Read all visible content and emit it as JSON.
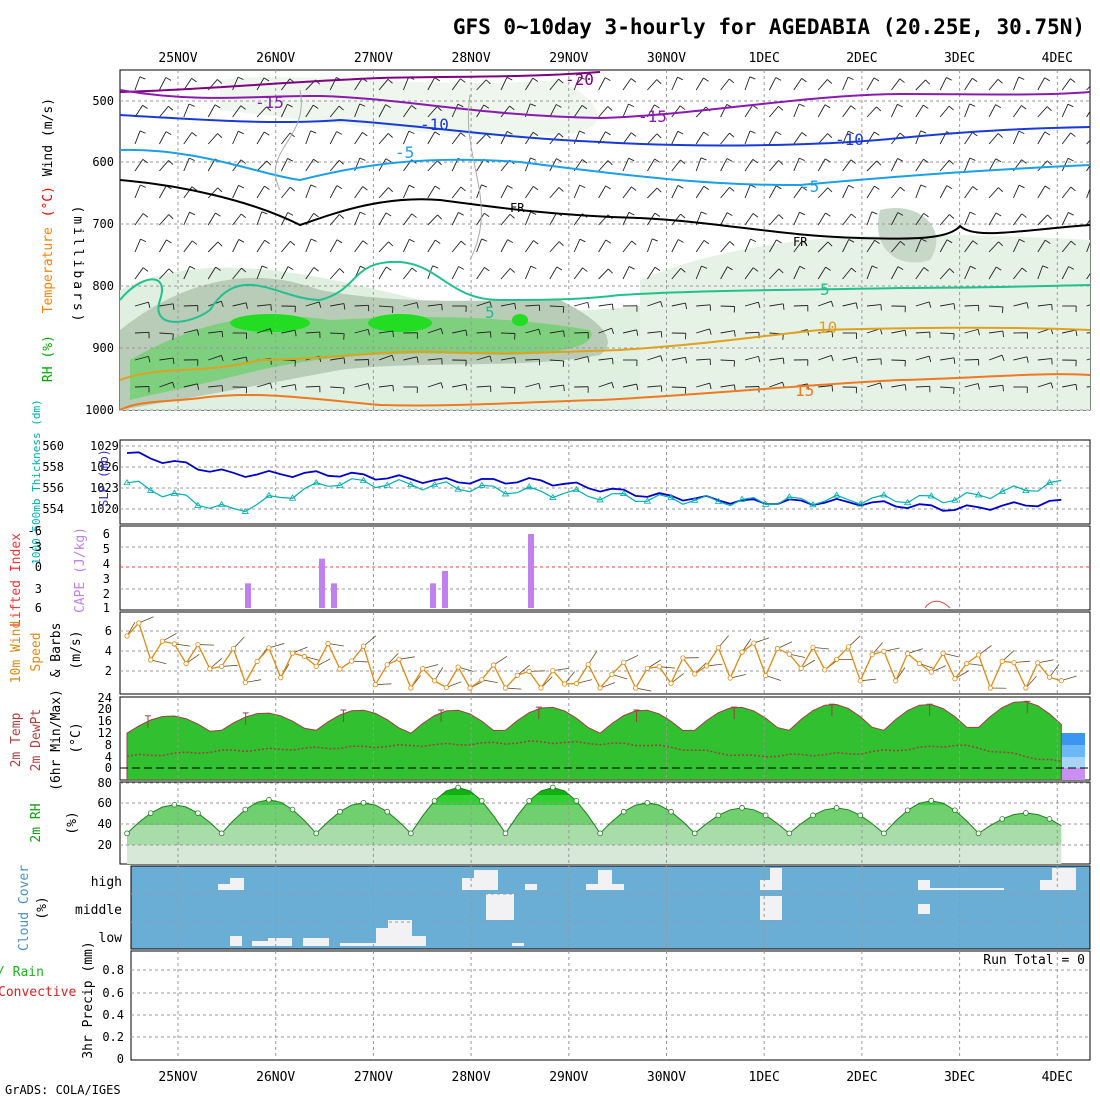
{
  "header": {
    "title": "GFS 0~10day 3-hourly for AGEDABIA (20.25E, 30.75N)",
    "footer": "GrADS: COLA/IGES"
  },
  "x_axis": {
    "day_labels": [
      "25NOV",
      "26NOV",
      "27NOV",
      "28NOV",
      "29NOV",
      "30NOV",
      "1DEC",
      "2DEC",
      "3DEC",
      "4DEC"
    ]
  },
  "panels": {
    "upper_air": {
      "ylabel_parts": [
        {
          "text": "RH (%)",
          "color": "#00aa00"
        },
        {
          "text": "Temperature",
          "color": "#ff8000"
        },
        {
          "text": "(°C)",
          "color": "#ff0000"
        },
        {
          "text": "Wind (m/s)",
          "color": "#000000"
        }
      ],
      "units_label": "(millibars)",
      "y_ticks": [
        "500",
        "600",
        "700",
        "800",
        "900",
        "1000"
      ],
      "contour_labels": [
        "-20",
        "-15",
        "-15",
        "-10",
        "-10",
        "-5",
        "-5",
        "FR",
        "FR",
        "5",
        "5",
        "10",
        "15"
      ]
    },
    "slp": {
      "ylabel_left": "1000-500mb Thickness (dm)",
      "ylabel_right": "SLP (mb)",
      "left_ticks": [
        "560",
        "558",
        "556",
        "554"
      ],
      "right_ticks": [
        "1029",
        "1026",
        "1023",
        "1020"
      ]
    },
    "cape": {
      "ylabel_a": "Lifted Index",
      "ylabel_b": "CAPE (J/kg)",
      "left_ticks": [
        "-6",
        "-3",
        "0",
        "3",
        "6"
      ],
      "right_ticks": [
        "6",
        "5",
        "4",
        "3",
        "2",
        "1"
      ]
    },
    "wind10m": {
      "ylabel_a": "10m Wind",
      "ylabel_b": "Speed",
      "ylabel_c": "& Barbs",
      "ylabel_d": "(m/s)",
      "y_ticks": [
        "6",
        "4",
        "2"
      ]
    },
    "temp2m": {
      "ylabel_a": "2m Temp",
      "ylabel_b": "2m DewPt",
      "ylabel_c": "(6hr Min/Max)",
      "ylabel_d": "(°C)",
      "y_ticks": [
        "24",
        "20",
        "16",
        "12",
        "8",
        "4",
        "0"
      ]
    },
    "rh2m": {
      "ylabel_a": "2m RH",
      "ylabel_b": "(%)",
      "y_ticks": [
        "80",
        "60",
        "40",
        "20"
      ]
    },
    "cloud": {
      "ylabel_a": "Cloud Cover",
      "ylabel_b": "(%)",
      "levels": [
        "high",
        "middle",
        "low"
      ]
    },
    "precip": {
      "ylabel_a": "Total / Rain",
      "ylabel_b": "Convective",
      "ylabel_c": "3hr Precip (mm)",
      "y_ticks": [
        "0.8",
        "0.6",
        "0.4",
        "0.2",
        "0"
      ],
      "run_total": "Run Total = 0"
    }
  },
  "colors": {
    "rh_green": "#00cc00",
    "temp_line": "#ff8c00",
    "slp_line": "#0000cc",
    "thickness_line": "#00b0b0",
    "cape_bar": "#c080f0",
    "cloud_bg": "#6aaed6",
    "grid": "#aaaaaa"
  },
  "chart_data": [
    {
      "type": "heatmap",
      "title": "GFS 0~10day 3-hourly for AGEDABIA (20.25E, 30.75N)",
      "ylabel": "millibars",
      "ylim": [
        1000,
        460
      ],
      "isotherms_C": [
        -20,
        -15,
        -10,
        -5,
        0,
        5,
        10,
        15
      ],
      "freezing_level_label": "FR"
    },
    {
      "type": "line",
      "x": [
        "25NOV",
        "26NOV",
        "27NOV",
        "28NOV",
        "29NOV",
        "30NOV",
        "1DEC",
        "2DEC",
        "3DEC",
        "4DEC"
      ],
      "series": [
        {
          "name": "SLP (mb)",
          "values": [
            1028,
            1025,
            1025,
            1024,
            1024,
            1022,
            1021,
            1021,
            1020,
            1021
          ]
        },
        {
          "name": "1000-500mb Thickness (dm)",
          "values": [
            556.5,
            553.8,
            556.6,
            556.2,
            555.6,
            555.0,
            554.7,
            554.9,
            555.0,
            556.4
          ]
        }
      ]
    },
    {
      "type": "bar",
      "ylabel": "CAPE (J/kg)",
      "x": [
        "25NOV 18z",
        "26NOV 12z",
        "26NOV 15z",
        "27NOV 15z",
        "27NOV 18z",
        "28NOV 15z"
      ],
      "values": [
        2,
        4,
        2,
        2,
        3,
        6
      ]
    },
    {
      "type": "line",
      "ylabel": "10m Wind Speed (m/s)",
      "x": [
        "25NOV",
        "26NOV",
        "27NOV",
        "28NOV",
        "29NOV",
        "30NOV",
        "1DEC",
        "2DEC",
        "3DEC",
        "4DEC"
      ],
      "values": [
        5.5,
        2.5,
        3.5,
        1.0,
        1.0,
        1.5,
        3.5,
        3.0,
        2.5,
        1.5
      ]
    },
    {
      "type": "area",
      "ylabel": "2m Temp (°C)",
      "x": [
        "25NOV",
        "26NOV",
        "27NOV",
        "28NOV",
        "29NOV",
        "30NOV",
        "1DEC",
        "2DEC",
        "3DEC",
        "4DEC"
      ],
      "series": [
        {
          "name": "2m Temp max",
          "values": [
            18,
            19,
            20,
            20,
            21,
            20,
            21,
            22,
            22,
            23
          ]
        },
        {
          "name": "2m Temp min",
          "values": [
            12,
            13,
            13,
            12,
            13,
            12,
            13,
            13,
            13,
            14
          ]
        },
        {
          "name": "2m DewPt",
          "values": [
            4,
            6,
            7,
            8,
            9,
            8,
            4,
            5,
            8,
            2
          ]
        }
      ]
    },
    {
      "type": "area",
      "ylabel": "2m RH (%)",
      "x": [
        "25NOV",
        "26NOV",
        "27NOV",
        "28NOV",
        "29NOV",
        "30NOV",
        "1DEC",
        "2DEC",
        "3DEC",
        "4DEC"
      ],
      "values": [
        60,
        65,
        62,
        77,
        77,
        62,
        57,
        57,
        64,
        52
      ],
      "ylim": [
        0,
        85
      ]
    },
    {
      "type": "heatmap",
      "ylabel": "Cloud Cover (%)",
      "categories": [
        "high",
        "middle",
        "low"
      ]
    },
    {
      "type": "bar",
      "ylabel": "3hr Precip (mm)",
      "values": [],
      "ylim": [
        0,
        0.9
      ],
      "annotation": "Run Total = 0"
    }
  ]
}
